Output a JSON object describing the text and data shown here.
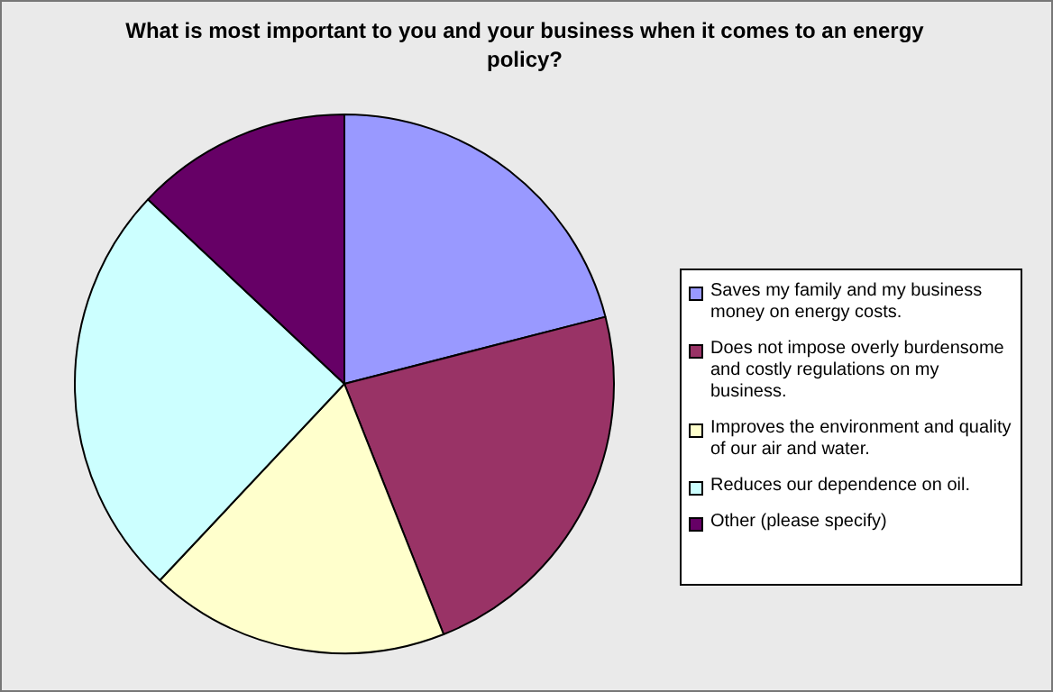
{
  "chart_data": {
    "type": "pie",
    "title": "What is most important to you and your business when it comes to an energy policy?",
    "categories": [
      "Saves my family and my business money on energy costs.",
      "Does not impose overly burdensome and costly regulations on my business.",
      "Improves the environment and quality of our air and water.",
      "Reduces our dependence on oil.",
      "Other (please specify)"
    ],
    "values": [
      21,
      23,
      18,
      25,
      13
    ],
    "colors": [
      "#9999ff",
      "#993366",
      "#ffffcc",
      "#ccffff",
      "#660066"
    ],
    "legend": "right"
  }
}
